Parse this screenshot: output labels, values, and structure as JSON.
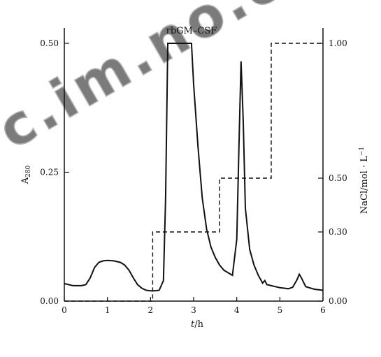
{
  "chart_data": {
    "type": "line",
    "x_label_var": "t",
    "x_label_unit": "/h",
    "y_left_label_main": "A",
    "y_left_label_sub": "280",
    "y_right_label": "NaCl/mol · L",
    "y_right_label_sup": "−1",
    "x_ticks": [
      "0",
      "1",
      "2",
      "3",
      "4",
      "5",
      "6"
    ],
    "y_left_ticks": [
      "0.00",
      "0.25",
      "0.50"
    ],
    "y_right_ticks": [
      "0.00",
      "0.30",
      "0.50",
      "1.00"
    ],
    "xlim": [
      0,
      6
    ],
    "ylim_left": [
      0,
      0.5
    ],
    "annotations": [
      {
        "text": "rbGM–CSF",
        "x": 2.95,
        "y": 0.5
      }
    ],
    "watermark": "cnki.com.cn",
    "series": [
      {
        "style": "solid",
        "axis": "left",
        "x": [
          0,
          0.2,
          0.4,
          0.5,
          0.6,
          0.7,
          0.8,
          0.9,
          1.0,
          1.15,
          1.3,
          1.4,
          1.5,
          1.6,
          1.7,
          1.8,
          1.9,
          2.0,
          2.1,
          2.2,
          2.3,
          2.35,
          2.4,
          2.95,
          3.0,
          3.1,
          3.2,
          3.3,
          3.4,
          3.5,
          3.6,
          3.7,
          3.8,
          3.9,
          4.0,
          4.05,
          4.1,
          4.15,
          4.2,
          4.3,
          4.4,
          4.5,
          4.6,
          4.65,
          4.7,
          4.8,
          5.0,
          5.2,
          5.3,
          5.4,
          5.45,
          5.5,
          5.6,
          5.8,
          6.0
        ],
        "y": [
          0.034,
          0.03,
          0.03,
          0.032,
          0.045,
          0.065,
          0.075,
          0.078,
          0.079,
          0.078,
          0.075,
          0.07,
          0.06,
          0.045,
          0.032,
          0.025,
          0.021,
          0.02,
          0.02,
          0.021,
          0.04,
          0.2,
          0.5,
          0.5,
          0.42,
          0.3,
          0.2,
          0.14,
          0.105,
          0.085,
          0.07,
          0.06,
          0.055,
          0.05,
          0.12,
          0.3,
          0.465,
          0.35,
          0.18,
          0.1,
          0.07,
          0.05,
          0.035,
          0.04,
          0.032,
          0.03,
          0.026,
          0.024,
          0.027,
          0.042,
          0.052,
          0.045,
          0.028,
          0.023,
          0.021
        ]
      },
      {
        "style": "dashed",
        "axis": "right",
        "x": [
          0,
          2.05,
          2.05,
          3.6,
          3.6,
          4.8,
          4.8,
          6.0
        ],
        "y": [
          0.0,
          0.0,
          0.3,
          0.3,
          0.5,
          0.5,
          1.0,
          1.0
        ]
      }
    ]
  }
}
